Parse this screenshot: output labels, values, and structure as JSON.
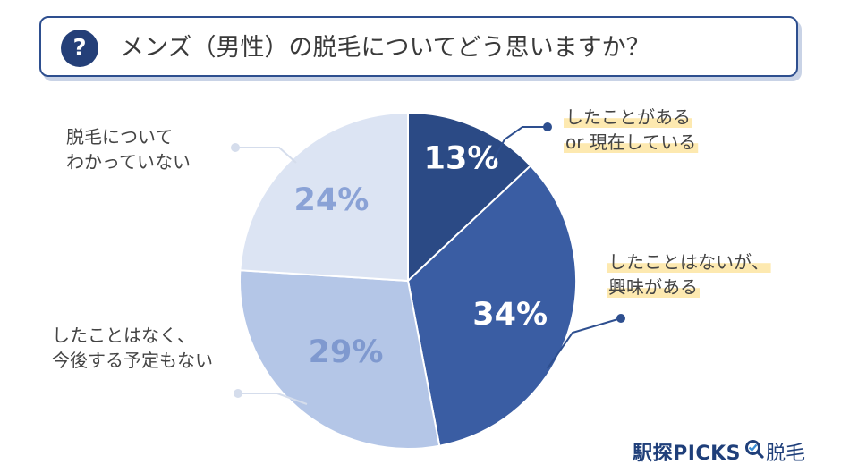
{
  "header": {
    "icon_glyph": "?",
    "title": "メンズ（男性）の脱毛についてどう思いますか？"
  },
  "chart_data": {
    "type": "pie",
    "title": "メンズ（男性）の脱毛についてどう思いますか？",
    "slices": [
      {
        "label": "したことがある or 現在している",
        "label_lines": [
          "したことがある",
          "or 現在している"
        ],
        "value": 13,
        "display": "13%",
        "color": "#2b4a85",
        "text_color": "#ffffff"
      },
      {
        "label": "したことはないが、興味がある",
        "label_lines": [
          "したことはないが、",
          "興味がある"
        ],
        "value": 34,
        "display": "34%",
        "color": "#3a5da3",
        "text_color": "#ffffff"
      },
      {
        "label": "したことはなく、今後する予定もない",
        "label_lines": [
          "したことはなく、",
          "今後する予定もない"
        ],
        "value": 29,
        "display": "29%",
        "color": "#b4c6e7",
        "text_color": "#7f99cf"
      },
      {
        "label": "脱毛についてわかっていない",
        "label_lines": [
          "脱毛について",
          "わかっていない"
        ],
        "value": 24,
        "display": "24%",
        "color": "#dce4f3",
        "text_color": "#8aa2d6"
      }
    ],
    "start_angle_deg": 0,
    "direction": "clockwise",
    "highlight_color": "#fde9b0",
    "leader_color": "#2e4f8f",
    "leader_color_light": "#d5ddec"
  },
  "brand": {
    "name": "駅探PICKS",
    "suffix": "脱毛",
    "icon": "magnifier-icon"
  }
}
